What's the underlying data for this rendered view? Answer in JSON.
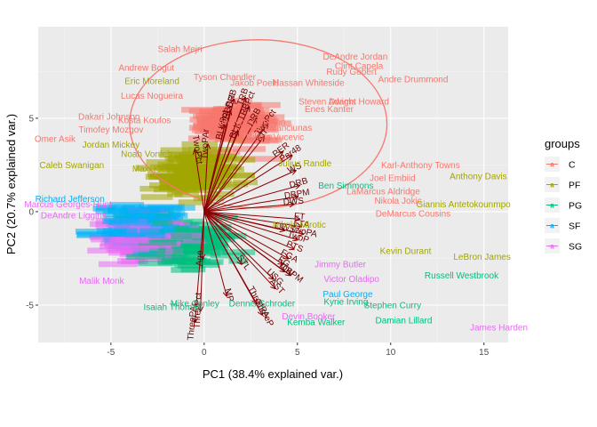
{
  "chart_data": {
    "type": "scatter",
    "title": "",
    "xlabel": "PC1 (38.4% explained var.)",
    "ylabel": "PC2 (20.7% explained var.)",
    "xlim": [
      -8.9,
      16.3
    ],
    "ylim": [
      -7.0,
      9.9
    ],
    "x_ticks": [
      -5,
      0,
      5,
      10,
      15
    ],
    "y_ticks": [
      -5,
      0,
      5
    ],
    "grid": true,
    "legend": {
      "title": "groups",
      "placement": "right",
      "entries": [
        {
          "name": "C",
          "color": "#F8766D"
        },
        {
          "name": "PF",
          "color": "#A3A500"
        },
        {
          "name": "PG",
          "color": "#00BF7D"
        },
        {
          "name": "SF",
          "color": "#00B0F6"
        },
        {
          "name": "SG",
          "color": "#E76BF3"
        }
      ]
    },
    "ellipse": {
      "group": "C",
      "cx": 2.9,
      "cy": 4.7,
      "rx": 6.9,
      "ry": 4.5
    },
    "labeled_players": [
      {
        "name": "Salah Mejri",
        "x": -1.3,
        "y": 8.7,
        "group": "C"
      },
      {
        "name": "DeAndre Jordan",
        "x": 8.1,
        "y": 8.3,
        "group": "C"
      },
      {
        "name": "Clint Capela",
        "x": 8.3,
        "y": 7.8,
        "group": "C"
      },
      {
        "name": "Andrew Bogut",
        "x": -3.1,
        "y": 7.7,
        "group": "C"
      },
      {
        "name": "Rudy Gobert",
        "x": 7.9,
        "y": 7.5,
        "group": "C"
      },
      {
        "name": "Eric Moreland",
        "x": -2.8,
        "y": 7.0,
        "group": "PF"
      },
      {
        "name": "Tyson Chandler",
        "x": 1.1,
        "y": 7.2,
        "group": "C"
      },
      {
        "name": "Jakob Poeltl",
        "x": 2.7,
        "y": 6.9,
        "group": "C"
      },
      {
        "name": "Hassan Whiteside",
        "x": 5.6,
        "y": 6.9,
        "group": "C"
      },
      {
        "name": "Andre Drummond",
        "x": 11.2,
        "y": 7.1,
        "group": "C"
      },
      {
        "name": "Lucas Nogueira",
        "x": -2.8,
        "y": 6.2,
        "group": "C"
      },
      {
        "name": "Steven Adams",
        "x": 6.6,
        "y": 5.9,
        "group": "C"
      },
      {
        "name": "Dwight Howard",
        "x": 8.3,
        "y": 5.9,
        "group": "C"
      },
      {
        "name": "Enes Kanter",
        "x": 6.7,
        "y": 5.5,
        "group": "C"
      },
      {
        "name": "Dakari Johnson",
        "x": -5.1,
        "y": 5.1,
        "group": "C"
      },
      {
        "name": "Kosta Koufos",
        "x": -3.2,
        "y": 4.9,
        "group": "C"
      },
      {
        "name": "Dewayne Dedmon",
        "x": 2.4,
        "y": 4.8,
        "group": "C"
      },
      {
        "name": "Omer Asik",
        "x": -8.0,
        "y": 3.9,
        "group": "C"
      },
      {
        "name": "Timofey Mozgov",
        "x": -5.0,
        "y": 4.4,
        "group": "C"
      },
      {
        "name": "Jonas Valanciunas",
        "x": 3.8,
        "y": 4.5,
        "group": "C"
      },
      {
        "name": "Nikola Vucevic",
        "x": 3.8,
        "y": 4.0,
        "group": "C"
      },
      {
        "name": "Jordan Mickey",
        "x": -5.0,
        "y": 3.6,
        "group": "PF"
      },
      {
        "name": "Noah Vonleh",
        "x": -3.1,
        "y": 3.1,
        "group": "PF"
      },
      {
        "name": "Julius Randle",
        "x": 5.4,
        "y": 2.6,
        "group": "PF"
      },
      {
        "name": "Maxi Kleber",
        "x": -2.6,
        "y": 2.3,
        "group": "PF"
      },
      {
        "name": "Caleb Swanigan",
        "x": -7.1,
        "y": 2.5,
        "group": "PF"
      },
      {
        "name": "Karl-Anthony Towns",
        "x": 11.6,
        "y": 2.5,
        "group": "C"
      },
      {
        "name": "Anthony Davis",
        "x": 14.7,
        "y": 1.9,
        "group": "PF"
      },
      {
        "name": "Joel Embiid",
        "x": 10.1,
        "y": 1.8,
        "group": "C"
      },
      {
        "name": "Ben Simmons",
        "x": 7.6,
        "y": 1.4,
        "group": "PG"
      },
      {
        "name": "LaMarcus Aldridge",
        "x": 9.6,
        "y": 1.1,
        "group": "C"
      },
      {
        "name": "Nikola Jokic",
        "x": 10.4,
        "y": 0.6,
        "group": "C"
      },
      {
        "name": "Giannis Antetokounmpo",
        "x": 13.9,
        "y": 0.4,
        "group": "PF"
      },
      {
        "name": "DeMarcus Cousins",
        "x": 11.2,
        "y": -0.1,
        "group": "C"
      },
      {
        "name": "Marcus Georges-Hunt",
        "x": -7.3,
        "y": 0.4,
        "group": "SG"
      },
      {
        "name": "Richard Jefferson",
        "x": -7.2,
        "y": 0.7,
        "group": "SF"
      },
      {
        "name": "DeAndre Liggins",
        "x": -7.0,
        "y": -0.2,
        "group": "SG"
      },
      {
        "name": "Nikola Mirotic",
        "x": 5.1,
        "y": -0.7,
        "group": "PF"
      },
      {
        "name": "Kevin Durant",
        "x": 10.8,
        "y": -2.1,
        "group": "PF"
      },
      {
        "name": "LeBron James",
        "x": 14.9,
        "y": -2.4,
        "group": "PF"
      },
      {
        "name": "Jimmy Butler",
        "x": 7.3,
        "y": -2.8,
        "group": "SG"
      },
      {
        "name": "Russell Westbrook",
        "x": 13.8,
        "y": -3.4,
        "group": "PG"
      },
      {
        "name": "Victor Oladipo",
        "x": 7.9,
        "y": -3.6,
        "group": "SG"
      },
      {
        "name": "Malik Monk",
        "x": -5.5,
        "y": -3.7,
        "group": "SG"
      },
      {
        "name": "Paul George",
        "x": 7.7,
        "y": -4.4,
        "group": "SF"
      },
      {
        "name": "Kyrie Irving",
        "x": 7.6,
        "y": -4.8,
        "group": "PG"
      },
      {
        "name": "Mike Conley",
        "x": -0.5,
        "y": -4.9,
        "group": "PG"
      },
      {
        "name": "Dennis Schroder",
        "x": 3.1,
        "y": -4.9,
        "group": "PG"
      },
      {
        "name": "Stephen Curry",
        "x": 10.1,
        "y": -5.0,
        "group": "PG"
      },
      {
        "name": "Isaiah Thomas",
        "x": -1.7,
        "y": -5.1,
        "group": "PG"
      },
      {
        "name": "Devin Booker",
        "x": 5.6,
        "y": -5.6,
        "group": "SG"
      },
      {
        "name": "Kemba Walker",
        "x": 6.0,
        "y": -5.9,
        "group": "PG"
      },
      {
        "name": "Damian Lillard",
        "x": 10.7,
        "y": -5.8,
        "group": "PG"
      },
      {
        "name": "James Harden",
        "x": 15.8,
        "y": -6.2,
        "group": "SG"
      }
    ],
    "variable_loadings": [
      {
        "label": "ORB",
        "x": 1.6,
        "y": 6.0
      },
      {
        "label": "ORBPct",
        "x": 1.4,
        "y": 5.4
      },
      {
        "label": "TRB",
        "x": 2.2,
        "y": 6.1
      },
      {
        "label": "TRBPct",
        "x": 2.4,
        "y": 5.6
      },
      {
        "label": "DRB",
        "x": 2.8,
        "y": 5.0
      },
      {
        "label": "BLKPct",
        "x": 1.1,
        "y": 4.6
      },
      {
        "label": "BLK",
        "x": 1.8,
        "y": 4.3
      },
      {
        "label": "TwoPct",
        "x": 3.4,
        "y": 4.7
      },
      {
        "label": "FTr",
        "x": 3.2,
        "y": 4.0
      },
      {
        "label": "TwoPAr",
        "x": 0.2,
        "y": 3.6
      },
      {
        "label": "TwoPct",
        "x": -0.5,
        "y": 3.3
      },
      {
        "label": "PER",
        "x": 4.2,
        "y": 3.2
      },
      {
        "label": "Per48",
        "x": 4.7,
        "y": 3.0
      },
      {
        "label": "WS",
        "x": 4.9,
        "y": 2.2
      },
      {
        "label": "DRB",
        "x": 5.1,
        "y": 1.4
      },
      {
        "label": "DBPM",
        "x": 5.0,
        "y": 0.8
      },
      {
        "label": "DWS",
        "x": 4.8,
        "y": 0.4
      },
      {
        "label": "FT",
        "x": 5.1,
        "y": -0.4
      },
      {
        "label": "FTA",
        "x": 5.2,
        "y": -0.8
      },
      {
        "label": "TwoPA",
        "x": 5.3,
        "y": -1.2
      },
      {
        "label": "TwoP",
        "x": 5.0,
        "y": -1.5
      },
      {
        "label": "OWS",
        "x": 4.3,
        "y": -1.0
      },
      {
        "label": "PTS",
        "x": 4.8,
        "y": -2.0
      },
      {
        "label": "FGA",
        "x": 4.5,
        "y": -2.5
      },
      {
        "label": "FG",
        "x": 4.2,
        "y": -2.8
      },
      {
        "label": "TOV",
        "x": 4.3,
        "y": -3.2
      },
      {
        "label": "OBPM",
        "x": 4.6,
        "y": -3.4
      },
      {
        "label": "USG",
        "x": 3.7,
        "y": -3.6
      },
      {
        "label": "STL",
        "x": 2.0,
        "y": -2.8
      },
      {
        "label": "AST",
        "x": 3.8,
        "y": -4.1
      },
      {
        "label": "ThreePA",
        "x": 2.8,
        "y": -4.9
      },
      {
        "label": "ThreeP",
        "x": 3.1,
        "y": -5.5
      },
      {
        "label": "ThreePAr",
        "x": -0.5,
        "y": -5.9
      },
      {
        "label": "ThreePct",
        "x": -0.2,
        "y": -5.3
      },
      {
        "label": "MP",
        "x": 1.2,
        "y": -4.5
      },
      {
        "label": "Age",
        "x": -0.1,
        "y": -2.5
      }
    ]
  }
}
